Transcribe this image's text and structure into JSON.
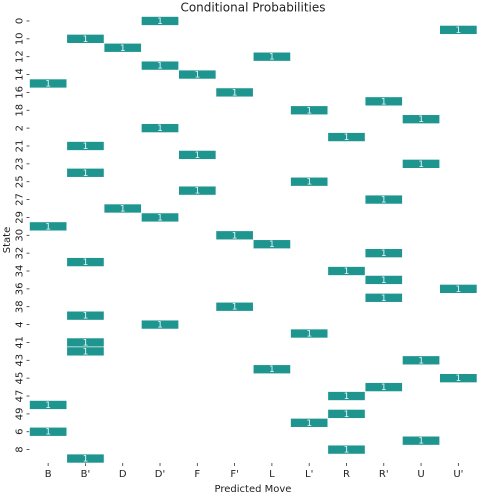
{
  "chart_data": {
    "type": "heatmap",
    "title": "Conditional Probabilities",
    "x_label": "Predicted Move",
    "y_label": "State",
    "x": [
      "B",
      "B'",
      "D",
      "D'",
      "F",
      "F'",
      "L",
      "L'",
      "R",
      "R'",
      "U",
      "U'"
    ],
    "y": [
      "0",
      null,
      "10",
      null,
      "12",
      null,
      "14",
      null,
      "16",
      null,
      "18",
      null,
      "2",
      null,
      "21",
      null,
      "23",
      null,
      "25",
      null,
      "27",
      null,
      "29",
      null,
      "30",
      null,
      "32",
      null,
      "34",
      null,
      "36",
      null,
      "38",
      null,
      "4",
      null,
      "41",
      null,
      "43",
      null,
      "45",
      null,
      "47",
      null,
      "49",
      null,
      "6",
      null,
      "8",
      null
    ],
    "color": "#1f9590",
    "z": [
      [
        null,
        null,
        null,
        1,
        null,
        null,
        null,
        null,
        null,
        null,
        null,
        null
      ],
      [
        null,
        null,
        null,
        null,
        null,
        null,
        null,
        null,
        null,
        null,
        null,
        1
      ],
      [
        null,
        1,
        null,
        null,
        null,
        null,
        null,
        null,
        null,
        null,
        null,
        null
      ],
      [
        null,
        null,
        1,
        null,
        null,
        null,
        null,
        null,
        null,
        null,
        null,
        null
      ],
      [
        null,
        null,
        null,
        null,
        null,
        null,
        1,
        null,
        null,
        null,
        null,
        null
      ],
      [
        null,
        null,
        null,
        1,
        null,
        null,
        null,
        null,
        null,
        null,
        null,
        null
      ],
      [
        null,
        null,
        null,
        null,
        1,
        null,
        null,
        null,
        null,
        null,
        null,
        null
      ],
      [
        1,
        null,
        null,
        null,
        null,
        null,
        null,
        null,
        null,
        null,
        null,
        null
      ],
      [
        null,
        null,
        null,
        null,
        null,
        1,
        null,
        null,
        null,
        null,
        null,
        null
      ],
      [
        null,
        null,
        null,
        null,
        null,
        null,
        null,
        null,
        null,
        1,
        null,
        null
      ],
      [
        null,
        null,
        null,
        null,
        null,
        null,
        null,
        1,
        null,
        null,
        null,
        null
      ],
      [
        null,
        null,
        null,
        null,
        null,
        null,
        null,
        null,
        null,
        null,
        1,
        null
      ],
      [
        null,
        null,
        null,
        1,
        null,
        null,
        null,
        null,
        null,
        null,
        null,
        null
      ],
      [
        null,
        null,
        null,
        null,
        null,
        null,
        null,
        null,
        1,
        null,
        null,
        null
      ],
      [
        null,
        1,
        null,
        null,
        null,
        null,
        null,
        null,
        null,
        null,
        null,
        null
      ],
      [
        null,
        null,
        null,
        null,
        1,
        null,
        null,
        null,
        null,
        null,
        null,
        null
      ],
      [
        null,
        null,
        null,
        null,
        null,
        null,
        null,
        null,
        null,
        null,
        1,
        null
      ],
      [
        null,
        1,
        null,
        null,
        null,
        null,
        null,
        null,
        null,
        null,
        null,
        null
      ],
      [
        null,
        null,
        null,
        null,
        null,
        null,
        null,
        1,
        null,
        null,
        null,
        null
      ],
      [
        null,
        null,
        null,
        null,
        1,
        null,
        null,
        null,
        null,
        null,
        null,
        null
      ],
      [
        null,
        null,
        null,
        null,
        null,
        null,
        null,
        null,
        null,
        1,
        null,
        null
      ],
      [
        null,
        null,
        1,
        null,
        null,
        null,
        null,
        null,
        null,
        null,
        null,
        null
      ],
      [
        null,
        null,
        null,
        1,
        null,
        null,
        null,
        null,
        null,
        null,
        null,
        null
      ],
      [
        1,
        null,
        null,
        null,
        null,
        null,
        null,
        null,
        null,
        null,
        null,
        null
      ],
      [
        null,
        null,
        null,
        null,
        null,
        1,
        null,
        null,
        null,
        null,
        null,
        null
      ],
      [
        null,
        null,
        null,
        null,
        null,
        null,
        1,
        null,
        null,
        null,
        null,
        null
      ],
      [
        null,
        null,
        null,
        null,
        null,
        null,
        null,
        null,
        null,
        1,
        null,
        null
      ],
      [
        null,
        1,
        null,
        null,
        null,
        null,
        null,
        null,
        null,
        null,
        null,
        null
      ],
      [
        null,
        null,
        null,
        null,
        null,
        null,
        null,
        null,
        1,
        null,
        null,
        null
      ],
      [
        null,
        null,
        null,
        null,
        null,
        null,
        null,
        null,
        null,
        1,
        null,
        null
      ],
      [
        null,
        null,
        null,
        null,
        null,
        null,
        null,
        null,
        null,
        null,
        null,
        1
      ],
      [
        null,
        null,
        null,
        null,
        null,
        null,
        null,
        null,
        null,
        1,
        null,
        null
      ],
      [
        null,
        null,
        null,
        null,
        null,
        1,
        null,
        null,
        null,
        null,
        null,
        null
      ],
      [
        null,
        1,
        null,
        null,
        null,
        null,
        null,
        null,
        null,
        null,
        null,
        null
      ],
      [
        null,
        null,
        null,
        1,
        null,
        null,
        null,
        null,
        null,
        null,
        null,
        null
      ],
      [
        null,
        null,
        null,
        null,
        null,
        null,
        null,
        1,
        null,
        null,
        null,
        null
      ],
      [
        null,
        1,
        null,
        null,
        null,
        null,
        null,
        null,
        null,
        null,
        null,
        null
      ],
      [
        null,
        1,
        null,
        null,
        null,
        null,
        null,
        null,
        null,
        null,
        null,
        null
      ],
      [
        null,
        null,
        null,
        null,
        null,
        null,
        null,
        null,
        null,
        null,
        1,
        null
      ],
      [
        null,
        null,
        null,
        null,
        null,
        null,
        1,
        null,
        null,
        null,
        null,
        null
      ],
      [
        null,
        null,
        null,
        null,
        null,
        null,
        null,
        null,
        null,
        null,
        null,
        1
      ],
      [
        null,
        null,
        null,
        null,
        null,
        null,
        null,
        null,
        null,
        1,
        null,
        null
      ],
      [
        null,
        null,
        null,
        null,
        null,
        null,
        null,
        null,
        1,
        null,
        null,
        null
      ],
      [
        1,
        null,
        null,
        null,
        null,
        null,
        null,
        null,
        null,
        null,
        null,
        null
      ],
      [
        null,
        null,
        null,
        null,
        null,
        null,
        null,
        null,
        1,
        null,
        null,
        null
      ],
      [
        null,
        null,
        null,
        null,
        null,
        null,
        null,
        1,
        null,
        null,
        null,
        null
      ],
      [
        1,
        null,
        null,
        null,
        null,
        null,
        null,
        null,
        null,
        null,
        null,
        null
      ],
      [
        null,
        null,
        null,
        null,
        null,
        null,
        null,
        null,
        null,
        null,
        1,
        null
      ],
      [
        null,
        null,
        null,
        null,
        null,
        null,
        null,
        null,
        1,
        null,
        null,
        null
      ],
      [
        null,
        1,
        null,
        null,
        null,
        null,
        null,
        null,
        null,
        null,
        null,
        null
      ]
    ]
  }
}
